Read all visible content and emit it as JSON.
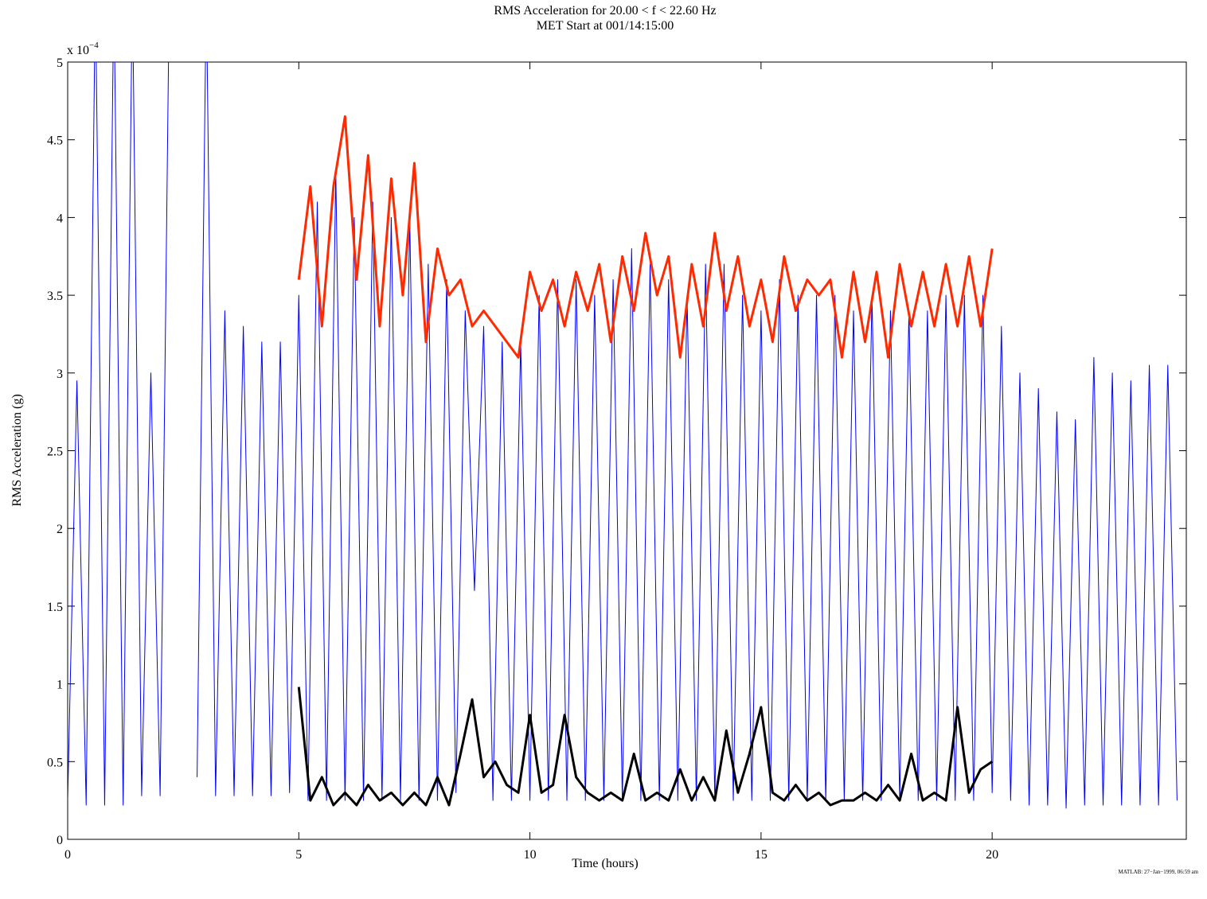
{
  "chart_data": {
    "type": "line",
    "title": "RMS Acceleration for 20.00 < f < 22.60 Hz",
    "subtitle": "MET Start at 001/14:15:00",
    "x_label": "Time (hours)",
    "y_label": "RMS Acceleration (g)",
    "y_multiplier": {
      "base": "x 10",
      "exponent": "−4"
    },
    "footnote": "MATLAB: 27−Jan−1999, 06:59 am",
    "xlim": [
      0,
      24.2
    ],
    "ylim": [
      0,
      5
    ],
    "xticks": [
      0,
      5,
      10,
      15,
      20
    ],
    "yticks": [
      0,
      0.5,
      1,
      1.5,
      2,
      2.5,
      3,
      3.5,
      4,
      4.5,
      5
    ],
    "grid": false,
    "series": [
      {
        "color": "#0000ff",
        "width": 1,
        "x": [
          0,
          0.2,
          0.4,
          0.6,
          0.8,
          1,
          1.2,
          1.4,
          1.6,
          1.8,
          2,
          2.2,
          2.4,
          2.6,
          2.8,
          3,
          3.2,
          3.4,
          3.6,
          3.8,
          4,
          4.2,
          4.4,
          4.6,
          4.8,
          5,
          5.2,
          5.4,
          5.6,
          5.8,
          6,
          6.2,
          6.4,
          6.6,
          6.8,
          7,
          7.2,
          7.4,
          7.6,
          7.8,
          8,
          8.2,
          8.4,
          8.6,
          8.8,
          9,
          9.2,
          9.4,
          9.6,
          9.8,
          10,
          10.2,
          10.4,
          10.6,
          10.8,
          11,
          11.2,
          11.4,
          11.6,
          11.8,
          12,
          12.2,
          12.4,
          12.6,
          12.8,
          13,
          13.2,
          13.4,
          13.6,
          13.8,
          14,
          14.2,
          14.4,
          14.6,
          14.8,
          15,
          15.2,
          15.4,
          15.6,
          15.8,
          16,
          16.2,
          16.4,
          16.6,
          16.8,
          17,
          17.2,
          17.4,
          17.6,
          17.8,
          18,
          18.2,
          18.4,
          18.6,
          18.8,
          19,
          19.2,
          19.4,
          19.6,
          19.8,
          20,
          20.2,
          20.4,
          20.6,
          20.8,
          21,
          21.2,
          21.4,
          21.6,
          21.8,
          22,
          22.2,
          22.4,
          22.6,
          22.8,
          23,
          23.2,
          23.4,
          23.6,
          23.8,
          24
        ],
        "values": [
          0.25,
          2.95,
          0.22,
          5.5,
          0.22,
          5.5,
          0.22,
          5.5,
          0.28,
          3.0,
          0.28,
          5.5,
          null,
          null,
          0.4,
          5.5,
          0.28,
          3.4,
          0.28,
          3.3,
          0.28,
          3.2,
          0.28,
          3.2,
          0.3,
          3.5,
          0.25,
          4.1,
          0.25,
          4.3,
          0.25,
          4.0,
          0.25,
          4.1,
          0.25,
          4.0,
          0.25,
          4.0,
          0.25,
          3.7,
          0.25,
          3.6,
          0.3,
          3.4,
          1.6,
          3.3,
          0.25,
          3.2,
          0.25,
          3.2,
          0.25,
          3.5,
          0.25,
          3.6,
          0.25,
          3.6,
          0.25,
          3.5,
          0.25,
          3.6,
          0.25,
          3.8,
          0.25,
          3.7,
          0.25,
          3.6,
          0.25,
          3.5,
          0.25,
          3.7,
          0.25,
          3.7,
          0.25,
          3.5,
          0.25,
          3.4,
          0.25,
          3.6,
          0.25,
          3.5,
          0.25,
          3.5,
          0.25,
          3.5,
          0.25,
          3.4,
          0.25,
          3.5,
          0.25,
          3.4,
          0.25,
          3.4,
          0.25,
          3.4,
          0.25,
          3.5,
          0.25,
          3.5,
          0.25,
          3.5,
          0.3,
          3.3,
          0.25,
          3.0,
          0.22,
          2.9,
          0.22,
          2.75,
          0.2,
          2.7,
          0.22,
          3.1,
          0.22,
          3.0,
          0.22,
          2.95,
          0.22,
          3.05,
          0.22,
          3.05,
          0.25
        ]
      },
      {
        "color": "#ff2a00",
        "width": 3,
        "x": [
          5,
          5.25,
          5.5,
          5.75,
          6,
          6.25,
          6.5,
          6.75,
          7,
          7.25,
          7.5,
          7.75,
          8,
          8.25,
          8.5,
          8.75,
          9,
          9.25,
          9.5,
          9.75,
          10,
          10.25,
          10.5,
          10.75,
          11,
          11.25,
          11.5,
          11.75,
          12,
          12.25,
          12.5,
          12.75,
          13,
          13.25,
          13.5,
          13.75,
          14,
          14.25,
          14.5,
          14.75,
          15,
          15.25,
          15.5,
          15.75,
          16,
          16.25,
          16.5,
          16.75,
          17,
          17.25,
          17.5,
          17.75,
          18,
          18.25,
          18.5,
          18.75,
          19,
          19.25,
          19.5,
          19.75,
          20
        ],
        "values": [
          3.6,
          4.2,
          3.3,
          4.2,
          4.65,
          3.6,
          4.4,
          3.3,
          4.25,
          3.5,
          4.35,
          3.2,
          3.8,
          3.5,
          3.6,
          3.3,
          3.4,
          3.3,
          3.2,
          3.1,
          3.65,
          3.4,
          3.6,
          3.3,
          3.65,
          3.4,
          3.7,
          3.2,
          3.75,
          3.4,
          3.9,
          3.5,
          3.75,
          3.1,
          3.7,
          3.3,
          3.9,
          3.4,
          3.75,
          3.3,
          3.6,
          3.2,
          3.75,
          3.4,
          3.6,
          3.5,
          3.6,
          3.1,
          3.65,
          3.2,
          3.65,
          3.1,
          3.7,
          3.3,
          3.65,
          3.3,
          3.7,
          3.3,
          3.75,
          3.3,
          3.8
        ]
      },
      {
        "color": "#000000",
        "width": 3,
        "x": [
          5,
          5.25,
          5.5,
          5.75,
          6,
          6.25,
          6.5,
          6.75,
          7,
          7.25,
          7.5,
          7.75,
          8,
          8.25,
          8.5,
          8.75,
          9,
          9.25,
          9.5,
          9.75,
          10,
          10.25,
          10.5,
          10.75,
          11,
          11.25,
          11.5,
          11.75,
          12,
          12.25,
          12.5,
          12.75,
          13,
          13.25,
          13.5,
          13.75,
          14,
          14.25,
          14.5,
          14.75,
          15,
          15.25,
          15.5,
          15.75,
          16,
          16.25,
          16.5,
          16.75,
          17,
          17.25,
          17.5,
          17.75,
          18,
          18.25,
          18.5,
          18.75,
          19,
          19.25,
          19.5,
          19.75,
          20
        ],
        "values": [
          0.98,
          0.25,
          0.4,
          0.22,
          0.3,
          0.22,
          0.35,
          0.25,
          0.3,
          0.22,
          0.3,
          0.22,
          0.4,
          0.22,
          0.55,
          0.9,
          0.4,
          0.5,
          0.35,
          0.3,
          0.8,
          0.3,
          0.35,
          0.8,
          0.4,
          0.3,
          0.25,
          0.3,
          0.25,
          0.55,
          0.25,
          0.3,
          0.25,
          0.45,
          0.25,
          0.4,
          0.25,
          0.7,
          0.3,
          0.55,
          0.85,
          0.3,
          0.25,
          0.35,
          0.25,
          0.3,
          0.22,
          0.25,
          0.25,
          0.3,
          0.25,
          0.35,
          0.25,
          0.55,
          0.25,
          0.3,
          0.25,
          0.85,
          0.3,
          0.45,
          0.5
        ]
      }
    ]
  }
}
